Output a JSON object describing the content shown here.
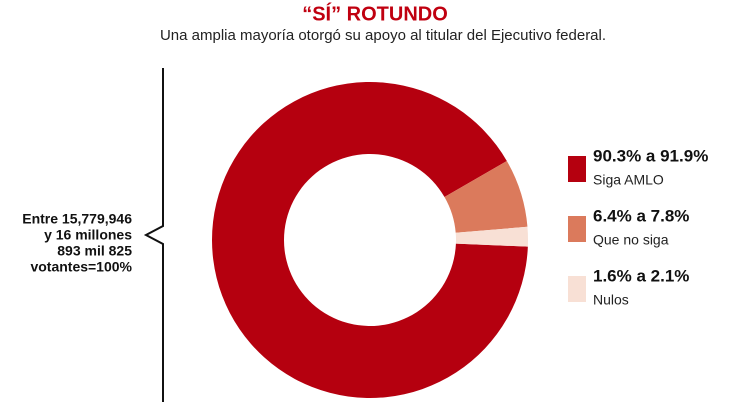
{
  "chart_data": {
    "type": "donut",
    "title": "“SÍ” ROTUNDO",
    "subtitle": "Una amplia mayoría otorgó su apoyo al titular del Ejecutivo federal.",
    "annotation": [
      "Entre 15,779,946",
      "y 16 millones",
      "893 mil 825",
      "votantes=100%"
    ],
    "categories": [
      "Siga AMLO",
      "Que no siga",
      "Nulos"
    ],
    "values": [
      91,
      7,
      2
    ],
    "value_labels": [
      "90.3% a 91.9%",
      "6.4% a 7.8%",
      "1.6% a 2.1%"
    ],
    "colors": [
      "#b5000f",
      "#db7a5c",
      "#f8e0d5"
    ]
  }
}
